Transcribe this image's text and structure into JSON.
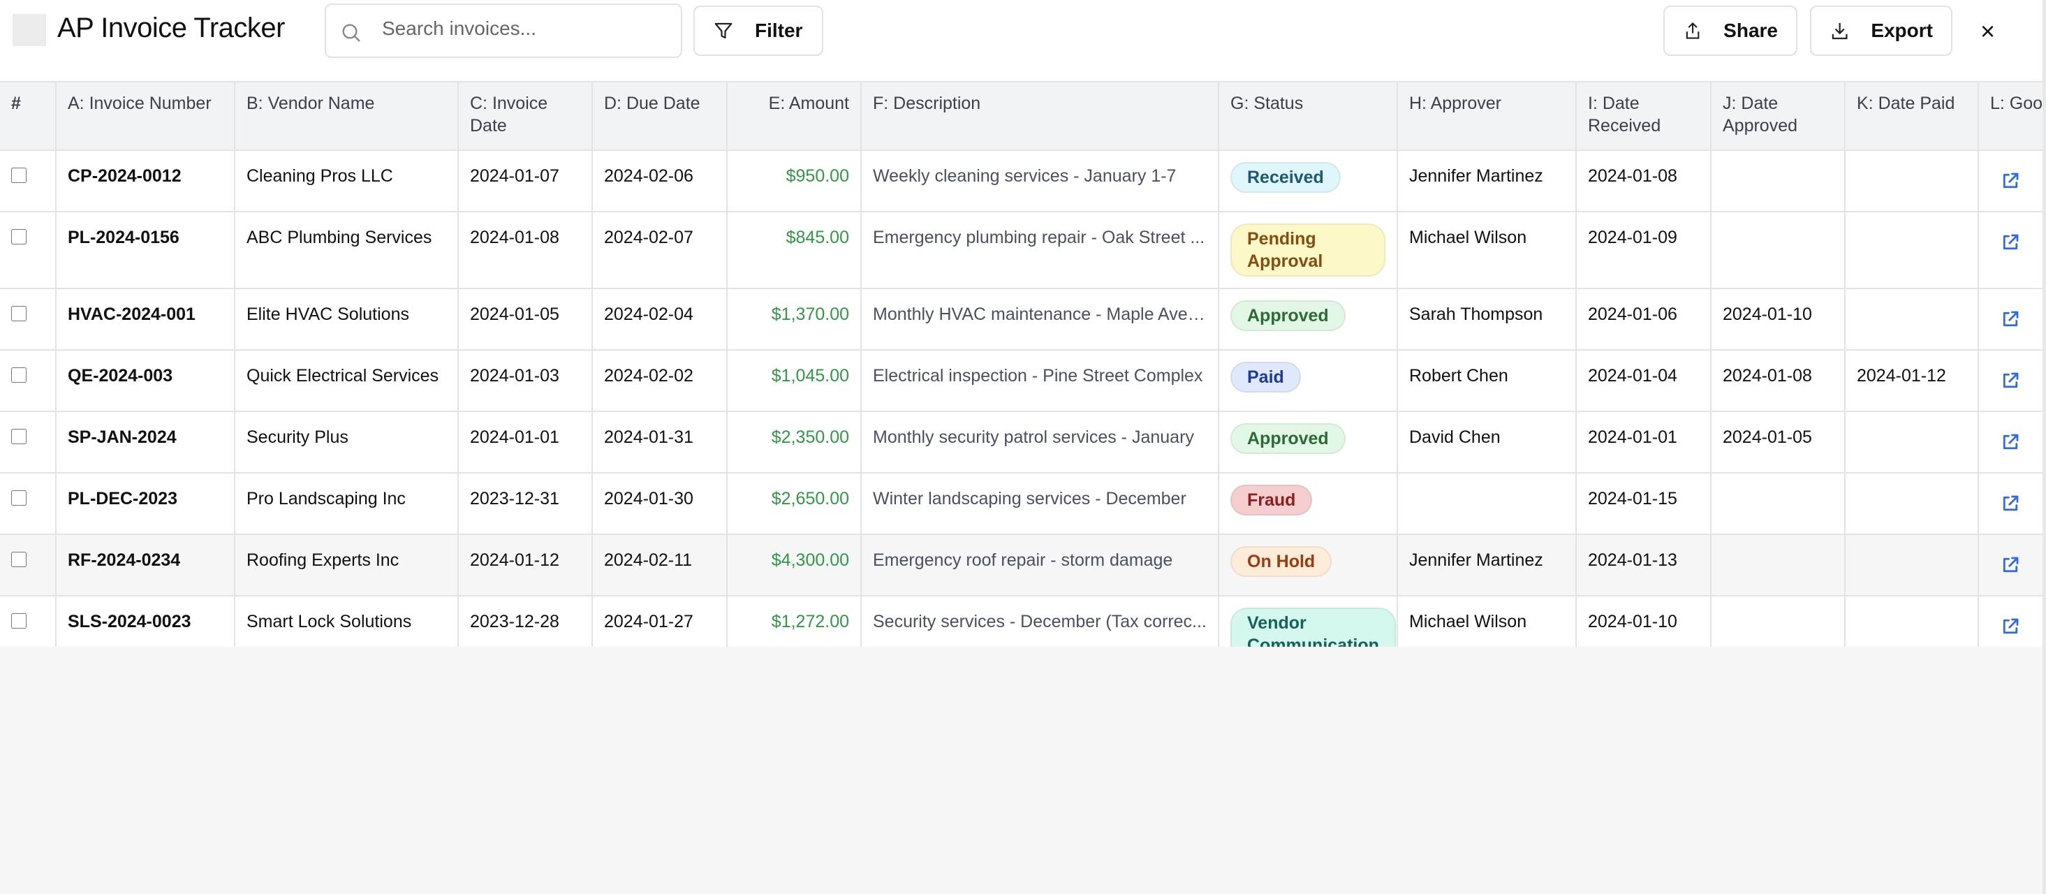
{
  "header": {
    "title": "AP Invoice Tracker",
    "search_placeholder": "Search invoices...",
    "filter_label": "Filter",
    "share_label": "Share",
    "export_label": "Export",
    "close_label": "×"
  },
  "columns": [
    "#",
    "A: Invoice Number",
    "B: Vendor Name",
    "C: Invoice Date",
    "D: Due Date",
    "E: Amount",
    "F: Description",
    "G: Status",
    "H: Approver",
    "I: Date Received",
    "J: Date Approved",
    "K: Date Paid",
    "L: Goo"
  ],
  "rows": [
    {
      "invoice": "CP-2024-0012",
      "vendor": "Cleaning Pros LLC",
      "inv_date": "2024-01-07",
      "due": "2024-02-06",
      "amount": "$950.00",
      "desc": "Weekly cleaning services - January 1-7",
      "status": "Received",
      "approver": "Jennifer Martinez",
      "received": "2024-01-08",
      "approved": "",
      "paid": ""
    },
    {
      "invoice": "PL-2024-0156",
      "vendor": "ABC Plumbing Services",
      "inv_date": "2024-01-08",
      "due": "2024-02-07",
      "amount": "$845.00",
      "desc": "Emergency plumbing repair - Oak Street ...",
      "status": "Pending Approval",
      "approver": "Michael Wilson",
      "received": "2024-01-09",
      "approved": "",
      "paid": ""
    },
    {
      "invoice": "HVAC-2024-001",
      "vendor": "Elite HVAC Solutions",
      "inv_date": "2024-01-05",
      "due": "2024-02-04",
      "amount": "$1,370.00",
      "desc": "Monthly HVAC maintenance - Maple Aven...",
      "status": "Approved",
      "approver": "Sarah Thompson",
      "received": "2024-01-06",
      "approved": "2024-01-10",
      "paid": ""
    },
    {
      "invoice": "QE-2024-003",
      "vendor": "Quick Electrical Services",
      "inv_date": "2024-01-03",
      "due": "2024-02-02",
      "amount": "$1,045.00",
      "desc": "Electrical inspection - Pine Street Complex",
      "status": "Paid",
      "approver": "Robert Chen",
      "received": "2024-01-04",
      "approved": "2024-01-08",
      "paid": "2024-01-12"
    },
    {
      "invoice": "SP-JAN-2024",
      "vendor": "Security Plus",
      "inv_date": "2024-01-01",
      "due": "2024-01-31",
      "amount": "$2,350.00",
      "desc": "Monthly security patrol services - January",
      "status": "Approved",
      "approver": "David Chen",
      "received": "2024-01-01",
      "approved": "2024-01-05",
      "paid": ""
    },
    {
      "invoice": "PL-DEC-2023",
      "vendor": "Pro Landscaping Inc",
      "inv_date": "2023-12-31",
      "due": "2024-01-30",
      "amount": "$2,650.00",
      "desc": "Winter landscaping services - December",
      "status": "Fraud",
      "approver": "",
      "received": "2024-01-15",
      "approved": "",
      "paid": ""
    },
    {
      "invoice": "RF-2024-0234",
      "vendor": "Roofing Experts Inc",
      "inv_date": "2024-01-12",
      "due": "2024-02-11",
      "amount": "$4,300.00",
      "desc": "Emergency roof repair - storm damage",
      "status": "On Hold",
      "approver": "Jennifer Martinez",
      "received": "2024-01-13",
      "approved": "",
      "paid": ""
    },
    {
      "invoice": "SLS-2024-0023",
      "vendor": "Smart Lock Solutions",
      "inv_date": "2023-12-28",
      "due": "2024-01-27",
      "amount": "$1,272.00",
      "desc": "Security services - December (Tax correc...",
      "status": "Vendor Communication",
      "approver": "Michael Wilson",
      "received": "2024-01-10",
      "approved": "",
      "paid": ""
    }
  ],
  "status_colors": {
    "Received": {
      "bg": "#dff6fb",
      "fg": "#1e5a6e"
    },
    "Pending Approval": {
      "bg": "#fdf8c8",
      "fg": "#854d0e"
    },
    "Approved": {
      "bg": "#e3f7e6",
      "fg": "#2a6b36"
    },
    "Paid": {
      "bg": "#e0e9fb",
      "fg": "#1e3a9a"
    },
    "Fraud": {
      "bg": "#f5cfcf",
      "fg": "#8b1f1f"
    },
    "On Hold": {
      "bg": "#fdecd8",
      "fg": "#9a3b12"
    },
    "Vendor Communication": {
      "bg": "#d4f7ee",
      "fg": "#16625a"
    }
  }
}
